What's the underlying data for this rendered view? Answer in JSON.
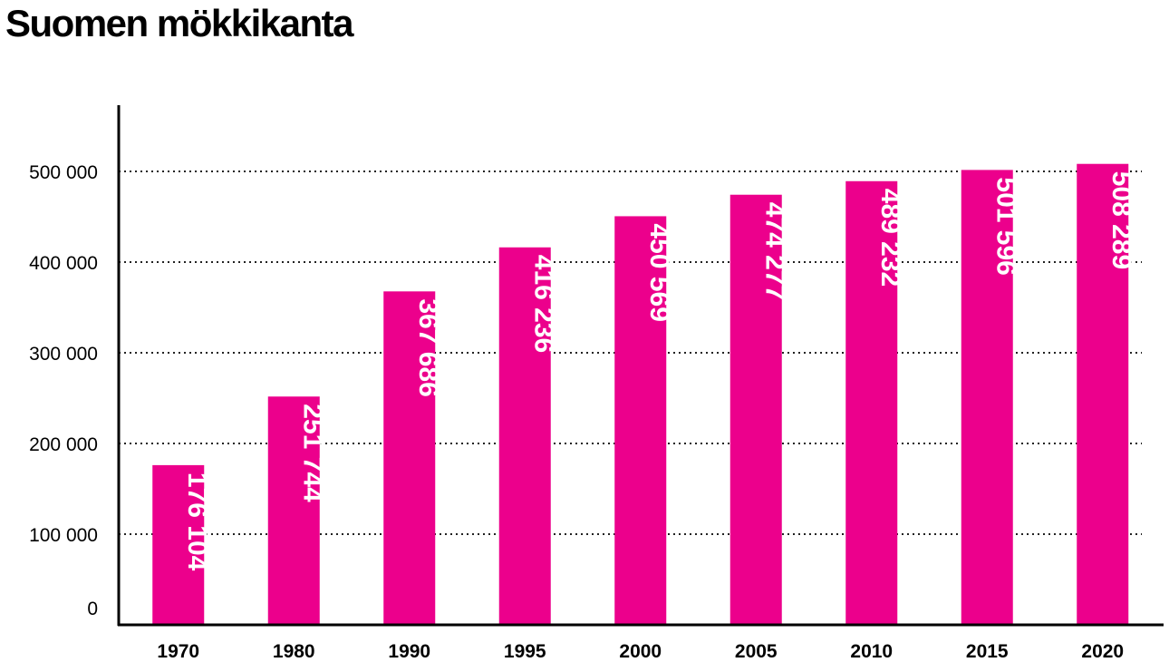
{
  "chart_data": {
    "type": "bar",
    "title": "Suomen mökkikanta",
    "categories": [
      "1970",
      "1980",
      "1990",
      "1995",
      "2000",
      "2005",
      "2010",
      "2015",
      "2020"
    ],
    "values": [
      176104,
      251744,
      367686,
      416236,
      450569,
      474277,
      489232,
      501596,
      508289
    ],
    "value_labels": [
      "176 104",
      "251 744",
      "367 686",
      "416 236",
      "450 569",
      "474 277",
      "489 232",
      "501 596",
      "508 289"
    ],
    "ylim": [
      0,
      570000
    ],
    "yticks": [
      0,
      100000,
      200000,
      300000,
      400000,
      500000
    ],
    "ytick_labels": [
      "0",
      "100 000",
      "200 000",
      "300 000",
      "400 000",
      "500 000"
    ],
    "grid": "dotted horizontal",
    "bar_color": "#EC008C",
    "label_color": "#FFFFFF"
  }
}
